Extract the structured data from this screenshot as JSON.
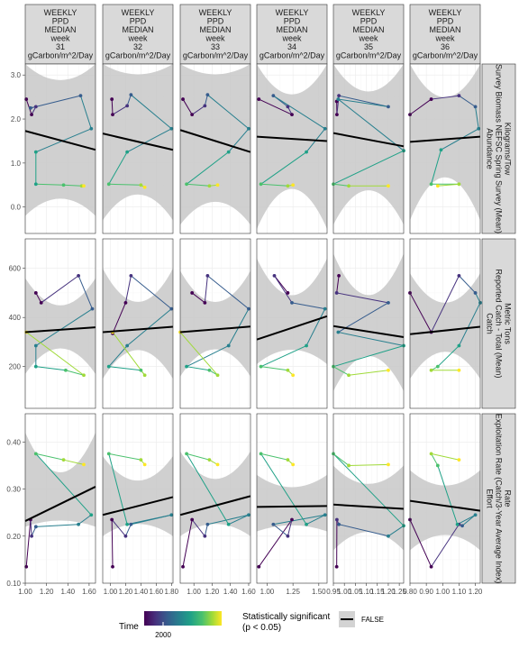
{
  "chart_data": {
    "type": "scatter",
    "columns": [
      {
        "strip": [
          "WEEKLY",
          "PPD",
          "MEDIAN",
          "week",
          "31",
          "gCarbon/m^2/Day"
        ],
        "xlim": [
          1.0,
          1.66
        ],
        "xticks": [
          1.0,
          1.2,
          1.4,
          1.6
        ],
        "xtick_labels": [
          "1.00",
          "1.20",
          "1.40",
          "1.60"
        ]
      },
      {
        "strip": [
          "WEEKLY",
          "PPD",
          "MEDIAN",
          "week",
          "32",
          "gCarbon/m^2/Day"
        ],
        "xlim": [
          0.9,
          1.82
        ],
        "xticks": [
          1.0,
          1.2,
          1.4,
          1.6,
          1.8
        ],
        "xtick_labels": [
          "1.00",
          "1.20",
          "1.40",
          "1.60",
          "1.80"
        ]
      },
      {
        "strip": [
          "WEEKLY",
          "PPD",
          "MEDIAN",
          "week",
          "33",
          "gCarbon/m^2/Day"
        ],
        "xlim": [
          0.85,
          1.62
        ],
        "xticks": [
          1.0,
          1.2,
          1.4,
          1.6
        ],
        "xtick_labels": [
          "1.00",
          "1.20",
          "1.40",
          "1.60"
        ]
      },
      {
        "strip": [
          "WEEKLY",
          "PPD",
          "MEDIAN",
          "week",
          "34",
          "gCarbon/m^2/Day"
        ],
        "xlim": [
          0.9,
          1.58
        ],
        "xticks": [
          1.0,
          1.25,
          1.5
        ],
        "xtick_labels": [
          "1.00",
          "1.25",
          "1.50"
        ]
      },
      {
        "strip": [
          "WEEKLY",
          "PPD",
          "MEDIAN",
          "week",
          "35",
          "gCarbon/m^2/Day"
        ],
        "xlim": [
          0.95,
          1.27
        ],
        "xticks": [
          0.95,
          1.0,
          1.05,
          1.1,
          1.15,
          1.2,
          1.25
        ],
        "xtick_labels": [
          "0.95",
          "1.00",
          "1.05",
          "1.10",
          "1.15",
          "1.20",
          "1.25"
        ]
      },
      {
        "strip": [
          "WEEKLY",
          "PPD",
          "MEDIAN",
          "week",
          "36",
          "gCarbon/m^2/Day"
        ],
        "xlim": [
          0.8,
          1.23
        ],
        "xticks": [
          0.8,
          0.9,
          1.0,
          1.1,
          1.2
        ],
        "xtick_labels": [
          "0.80",
          "0.90",
          "1.00",
          "1.10",
          "1.20"
        ]
      }
    ],
    "rows": [
      {
        "strip": [
          "Abundance",
          "Survey Biomass NEFSC Spring Survey (Mean)",
          "Kilograms/Tow"
        ],
        "ylim": [
          -0.6,
          3.25
        ],
        "yticks": [
          0,
          1,
          2,
          3
        ],
        "ytick_labels": [
          "0.0",
          "1.0",
          "2.0",
          "3.0"
        ]
      },
      {
        "strip": [
          "Catch",
          "Reported Catch - Total (Mean)",
          "Metric Tons"
        ],
        "ylim": [
          30,
          720
        ],
        "yticks": [
          200,
          400,
          600
        ],
        "ytick_labels": [
          "200",
          "400",
          "600"
        ]
      },
      {
        "strip": [
          "Effort",
          "Exploitation Rate (Catch/3-Year Average Index)",
          "Rate"
        ],
        "ylim": [
          0.1,
          0.46
        ],
        "yticks": [
          0.1,
          0.2,
          0.3,
          0.4
        ],
        "ytick_labels": [
          "0.10",
          "0.20",
          "0.30",
          "0.40"
        ]
      }
    ],
    "panels": [
      [
        {
          "x": [
            1.01,
            1.06,
            1.1,
            1.05,
            1.52,
            1.62,
            1.1,
            1.1,
            1.36,
            1.53,
            1.55
          ],
          "y": [
            2.45,
            2.1,
            2.28,
            2.25,
            2.53,
            1.78,
            1.25,
            0.52,
            0.5,
            0.48,
            0.48
          ],
          "fit": [
            1.73,
            1.3
          ],
          "band": [
            [
              1.3,
              2.15
            ],
            [
              0.4,
              2.7
            ],
            [
              -0.2,
              3.3
            ]
          ]
        },
        {
          "x": [
            1.02,
            1.03,
            1.22,
            1.27,
            1.8,
            1.22,
            0.98,
            1.4,
            1.45
          ],
          "y": [
            2.45,
            2.1,
            2.3,
            2.55,
            1.78,
            1.25,
            0.52,
            0.5,
            0.45
          ],
          "fit": [
            1.67,
            1.3
          ],
          "band": [
            [
              1.25,
              2.1
            ],
            [
              0.6,
              2.9
            ],
            [
              -0.3,
              3.3
            ]
          ]
        },
        {
          "x": [
            0.88,
            0.98,
            1.12,
            1.15,
            1.6,
            1.38,
            0.92,
            1.17,
            1.26
          ],
          "y": [
            2.45,
            2.1,
            2.3,
            2.55,
            1.78,
            1.25,
            0.52,
            0.48,
            0.5
          ],
          "fit": [
            1.75,
            1.25
          ],
          "band": [
            [
              1.3,
              2.15
            ],
            [
              0.4,
              2.9
            ],
            [
              -0.4,
              3.3
            ]
          ]
        },
        {
          "x": [
            0.92,
            1.24,
            1.2,
            1.06,
            1.56,
            1.38,
            0.94,
            1.2,
            1.25
          ],
          "y": [
            2.45,
            2.1,
            2.28,
            2.53,
            1.78,
            1.25,
            0.52,
            0.48,
            0.5
          ],
          "fit": [
            1.6,
            1.5
          ],
          "band": [
            [
              1.2,
              2.0
            ],
            [
              0.9,
              2.2
            ],
            [
              -0.5,
              3.3
            ]
          ]
        },
        {
          "x": [
            0.965,
            0.966,
            0.975,
            1.2,
            0.972,
            1.27,
            0.95,
            1.02,
            1.2
          ],
          "y": [
            2.4,
            2.1,
            2.53,
            2.28,
            2.45,
            1.28,
            0.52,
            0.48,
            0.48
          ],
          "fit": [
            1.68,
            1.38
          ],
          "band": [
            [
              1.3,
              2.1
            ],
            [
              0.8,
              2.3
            ],
            [
              -0.4,
              3.3
            ]
          ]
        },
        {
          "x": [
            0.8,
            0.93,
            1.1,
            1.2,
            1.22,
            0.99,
            0.93,
            1.1,
            0.97
          ],
          "y": [
            2.1,
            2.45,
            2.53,
            2.28,
            1.78,
            1.3,
            0.52,
            0.52,
            0.48
          ],
          "fit": [
            1.48,
            1.6
          ],
          "band": [
            [
              1.0,
              2.0
            ],
            [
              1.2,
              2.1
            ],
            [
              -0.3,
              3.3
            ]
          ]
        }
      ],
      [
        {
          "x": [
            1.1,
            1.15,
            1.5,
            1.63,
            1.1,
            1.1,
            1.38,
            1.55,
            1.01
          ],
          "y": [
            500,
            460,
            570,
            435,
            285,
            200,
            185,
            165,
            340
          ],
          "fit": [
            340,
            360
          ],
          "band": [
            [
              310,
              370
            ],
            [
              330,
              390
            ],
            [
              170,
              560
            ]
          ]
        },
        {
          "x": [
            1.03,
            1.2,
            1.27,
            1.8,
            1.22,
            0.98,
            1.4,
            1.45,
            1.03
          ],
          "y": [
            335,
            460,
            570,
            435,
            285,
            200,
            185,
            165,
            340
          ],
          "fit": [
            340,
            362
          ],
          "band": [
            [
              280,
              400
            ],
            [
              330,
              390
            ],
            [
              150,
              600
            ]
          ]
        },
        {
          "x": [
            0.98,
            1.12,
            1.15,
            1.6,
            1.38,
            0.92,
            1.17,
            1.26,
            0.85
          ],
          "y": [
            500,
            460,
            570,
            435,
            285,
            200,
            185,
            165,
            340
          ],
          "fit": [
            340,
            363
          ],
          "band": [
            [
              280,
              400
            ],
            [
              330,
              395
            ],
            [
              160,
              590
            ]
          ]
        },
        {
          "x": [
            1.2,
            1.07,
            1.24,
            1.56,
            1.38,
            0.94,
            1.2,
            1.25
          ],
          "y": [
            500,
            570,
            460,
            435,
            285,
            200,
            185,
            165
          ],
          "fit": [
            310,
            405
          ],
          "band": [
            [
              210,
              400
            ],
            [
              300,
              410
            ],
            [
              210,
              640
            ]
          ]
        },
        {
          "x": [
            0.975,
            0.965,
            1.2,
            0.972,
            1.27,
            0.95,
            1.02,
            1.2
          ],
          "y": [
            570,
            500,
            460,
            340,
            285,
            200,
            165,
            185
          ],
          "fit": [
            365,
            320
          ],
          "band": [
            [
              280,
              440
            ],
            [
              320,
              400
            ],
            [
              100,
              660
            ]
          ]
        },
        {
          "x": [
            0.8,
            0.93,
            1.1,
            1.2,
            1.23,
            1.1,
            0.97,
            0.93,
            1.1
          ],
          "y": [
            500,
            340,
            570,
            500,
            460,
            285,
            200,
            185,
            185
          ],
          "fit": [
            332,
            362
          ],
          "band": [
            [
              270,
              400
            ],
            [
              320,
              395
            ],
            [
              150,
              580
            ]
          ]
        }
      ],
      [
        {
          "x": [
            1.01,
            1.05,
            1.06,
            1.1,
            1.5,
            1.62,
            1.1,
            1.36,
            1.55
          ],
          "y": [
            0.135,
            0.235,
            0.2,
            0.22,
            0.225,
            0.245,
            0.375,
            0.362,
            0.352
          ],
          "fit": [
            0.232,
            0.305
          ],
          "band": [
            [
              0.19,
              0.27
            ],
            [
              0.24,
              0.29
            ],
            [
              0.22,
              0.42
            ]
          ]
        },
        {
          "x": [
            1.03,
            1.02,
            1.2,
            1.27,
            1.8,
            1.22,
            0.98,
            1.4,
            1.45
          ],
          "y": [
            0.135,
            0.235,
            0.2,
            0.225,
            0.245,
            0.225,
            0.375,
            0.362,
            0.352
          ],
          "fit": [
            0.245,
            0.283
          ],
          "band": [
            [
              0.2,
              0.29
            ],
            [
              0.24,
              0.29
            ],
            [
              0.2,
              0.37
            ]
          ]
        },
        {
          "x": [
            0.88,
            0.98,
            1.12,
            1.15,
            1.6,
            1.38,
            0.92,
            1.17,
            1.26
          ],
          "y": [
            0.135,
            0.235,
            0.2,
            0.225,
            0.245,
            0.225,
            0.375,
            0.362,
            0.352
          ],
          "fit": [
            0.245,
            0.285
          ],
          "band": [
            [
              0.2,
              0.29
            ],
            [
              0.24,
              0.29
            ],
            [
              0.2,
              0.38
            ]
          ]
        },
        {
          "x": [
            0.92,
            1.24,
            1.2,
            1.06,
            1.56,
            1.38,
            0.94,
            1.2,
            1.25
          ],
          "y": [
            0.135,
            0.235,
            0.2,
            0.225,
            0.245,
            0.225,
            0.375,
            0.362,
            0.352
          ],
          "fit": [
            0.262,
            0.264
          ],
          "band": [
            [
              0.2,
              0.32
            ],
            [
              0.23,
              0.29
            ],
            [
              0.21,
              0.33
            ]
          ]
        },
        {
          "x": [
            0.965,
            0.966,
            0.975,
            1.2,
            1.27,
            0.95,
            1.02,
            1.2
          ],
          "y": [
            0.135,
            0.235,
            0.225,
            0.2,
            0.222,
            0.375,
            0.35,
            0.352
          ],
          "fit": [
            0.267,
            0.258
          ],
          "band": [
            [
              0.18,
              0.34
            ],
            [
              0.23,
              0.29
            ],
            [
              0.17,
              0.35
            ]
          ]
        },
        {
          "x": [
            0.8,
            0.93,
            1.1,
            1.12,
            1.2,
            1.09,
            0.97,
            0.93,
            1.1
          ],
          "y": [
            0.235,
            0.135,
            0.225,
            0.222,
            0.245,
            0.225,
            0.35,
            0.375,
            0.362
          ],
          "fit": [
            0.275,
            0.254
          ],
          "band": [
            [
              0.16,
              0.38
            ],
            [
              0.22,
              0.29
            ],
            [
              0.17,
              0.34
            ]
          ]
        }
      ]
    ],
    "time_colors": [
      "#440154",
      "#46327e",
      "#365c8d",
      "#277f8e",
      "#1fa187",
      "#4ac16d",
      "#a0da39",
      "#fde725"
    ],
    "fit_color": "#000000",
    "band_color": "#c8c8c8",
    "legend": {
      "time_title": "Time",
      "time_tick": "2000",
      "sig_title_line1": "Statistically significant",
      "sig_title_line2": "(p < 0.05)",
      "sig_label": "FALSE"
    }
  }
}
